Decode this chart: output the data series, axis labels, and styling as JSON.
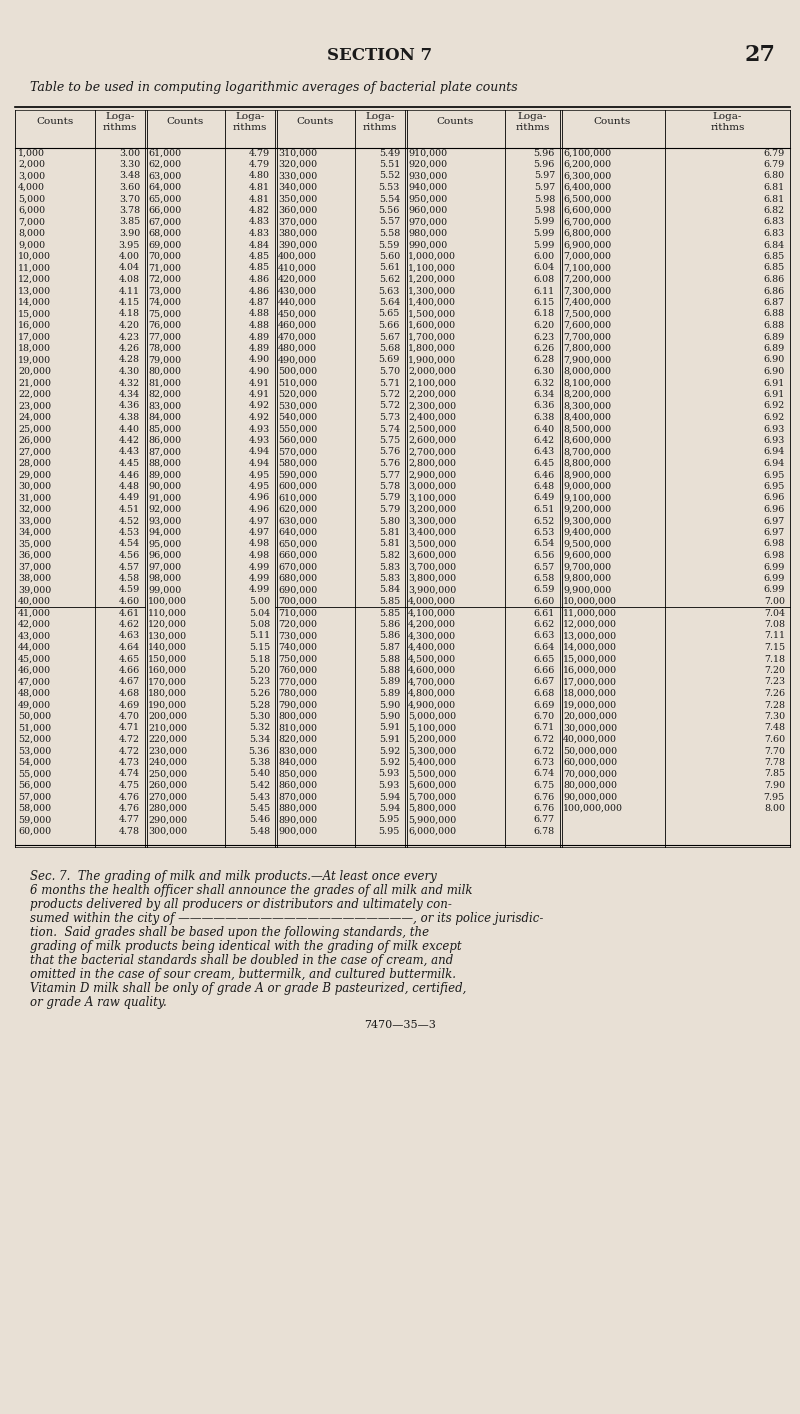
{
  "title_section": "SECTION 7",
  "title_page": "27",
  "table_title": "Table to be used in computing logarithmic averages of bacterial plate counts",
  "col_headers": [
    "Counts",
    "Loga-\nrithms",
    "Counts",
    "Loga-\nrithms",
    "Counts",
    "Loga-\nrithms",
    "Counts",
    "Loga-\nrithms",
    "Counts",
    "Loga-\nrithms"
  ],
  "table_data": [
    [
      "1,000",
      "3.00",
      "61,000",
      "4.79",
      "310,000",
      "5.49",
      "910,000",
      "5.96",
      "6,100,000",
      "6.79"
    ],
    [
      "2,000",
      "3.30",
      "62,000",
      "4.79",
      "320,000",
      "5.51",
      "920,000",
      "5.96",
      "6,200,000",
      "6.79"
    ],
    [
      "3,000",
      "3.48",
      "63,000",
      "4.80",
      "330,000",
      "5.52",
      "930,000",
      "5.97",
      "6,300,000",
      "6.80"
    ],
    [
      "4,000",
      "3.60",
      "64,000",
      "4.81",
      "340,000",
      "5.53",
      "940,000",
      "5.97",
      "6,400,000",
      "6.81"
    ],
    [
      "5,000",
      "3.70",
      "65,000",
      "4.81",
      "350,000",
      "5.54",
      "950,000",
      "5.98",
      "6,500,000",
      "6.81"
    ],
    [
      "6,000",
      "3.78",
      "66,000",
      "4.82",
      "360,000",
      "5.56",
      "960,000",
      "5.98",
      "6,600,000",
      "6.82"
    ],
    [
      "7,000",
      "3.85",
      "67,000",
      "4.83",
      "370,000",
      "5.57",
      "970,000",
      "5.99",
      "6,700,000",
      "6.83"
    ],
    [
      "8,000",
      "3.90",
      "68,000",
      "4.83",
      "380,000",
      "5.58",
      "980,000",
      "5.99",
      "6,800,000",
      "6.83"
    ],
    [
      "9,000",
      "3.95",
      "69,000",
      "4.84",
      "390,000",
      "5.59",
      "990,000",
      "5.99",
      "6,900,000",
      "6.84"
    ],
    [
      "10,000",
      "4.00",
      "70,000",
      "4.85",
      "400,000",
      "5.60",
      "1,000,000",
      "6.00",
      "7,000,000",
      "6.85"
    ],
    [
      "11,000",
      "4.04",
      "71,000",
      "4.85",
      "410,000",
      "5.61",
      "1,100,000",
      "6.04",
      "7,100,000",
      "6.85"
    ],
    [
      "12,000",
      "4.08",
      "72,000",
      "4.86",
      "420,000",
      "5.62",
      "1,200,000",
      "6.08",
      "7,200,000",
      "6.86"
    ],
    [
      "13,000",
      "4.11",
      "73,000",
      "4.86",
      "430,000",
      "5.63",
      "1,300,000",
      "6.11",
      "7,300,000",
      "6.86"
    ],
    [
      "14,000",
      "4.15",
      "74,000",
      "4.87",
      "440,000",
      "5.64",
      "1,400,000",
      "6.15",
      "7,400,000",
      "6.87"
    ],
    [
      "15,000",
      "4.18",
      "75,000",
      "4.88",
      "450,000",
      "5.65",
      "1,500,000",
      "6.18",
      "7,500,000",
      "6.88"
    ],
    [
      "16,000",
      "4.20",
      "76,000",
      "4.88",
      "460,000",
      "5.66",
      "1,600,000",
      "6.20",
      "7,600,000",
      "6.88"
    ],
    [
      "17,000",
      "4.23",
      "77,000",
      "4.89",
      "470,000",
      "5.67",
      "1,700,000",
      "6.23",
      "7,700,000",
      "6.89"
    ],
    [
      "18,000",
      "4.26",
      "78,000",
      "4.89",
      "480,000",
      "5.68",
      "1,800,000",
      "6.26",
      "7,800,000",
      "6.89"
    ],
    [
      "19,000",
      "4.28",
      "79,000",
      "4.90",
      "490,000",
      "5.69",
      "1,900,000",
      "6.28",
      "7,900,000",
      "6.90"
    ],
    [
      "20,000",
      "4.30",
      "80,000",
      "4.90",
      "500,000",
      "5.70",
      "2,000,000",
      "6.30",
      "8,000,000",
      "6.90"
    ],
    [
      "21,000",
      "4.32",
      "81,000",
      "4.91",
      "510,000",
      "5.71",
      "2,100,000",
      "6.32",
      "8,100,000",
      "6.91"
    ],
    [
      "22,000",
      "4.34",
      "82,000",
      "4.91",
      "520,000",
      "5.72",
      "2,200,000",
      "6.34",
      "8,200,000",
      "6.91"
    ],
    [
      "23,000",
      "4.36",
      "83,000",
      "4.92",
      "530,000",
      "5.72",
      "2,300,000",
      "6.36",
      "8,300,000",
      "6.92"
    ],
    [
      "24,000",
      "4.38",
      "84,000",
      "4.92",
      "540,000",
      "5.73",
      "2,400,000",
      "6.38",
      "8,400,000",
      "6.92"
    ],
    [
      "25,000",
      "4.40",
      "85,000",
      "4.93",
      "550,000",
      "5.74",
      "2,500,000",
      "6.40",
      "8,500,000",
      "6.93"
    ],
    [
      "26,000",
      "4.42",
      "86,000",
      "4.93",
      "560,000",
      "5.75",
      "2,600,000",
      "6.42",
      "8,600,000",
      "6.93"
    ],
    [
      "27,000",
      "4.43",
      "87,000",
      "4.94",
      "570,000",
      "5.76",
      "2,700,000",
      "6.43",
      "8,700,000",
      "6.94"
    ],
    [
      "28,000",
      "4.45",
      "88,000",
      "4.94",
      "580,000",
      "5.76",
      "2,800,000",
      "6.45",
      "8,800,000",
      "6.94"
    ],
    [
      "29,000",
      "4.46",
      "89,000",
      "4.95",
      "590,000",
      "5.77",
      "2,900,000",
      "6.46",
      "8,900,000",
      "6.95"
    ],
    [
      "30,000",
      "4.48",
      "90,000",
      "4.95",
      "600,000",
      "5.78",
      "3,000,000",
      "6.48",
      "9,000,000",
      "6.95"
    ],
    [
      "31,000",
      "4.49",
      "91,000",
      "4.96",
      "610,000",
      "5.79",
      "3,100,000",
      "6.49",
      "9,100,000",
      "6.96"
    ],
    [
      "32,000",
      "4.51",
      "92,000",
      "4.96",
      "620,000",
      "5.79",
      "3,200,000",
      "6.51",
      "9,200,000",
      "6.96"
    ],
    [
      "33,000",
      "4.52",
      "93,000",
      "4.97",
      "630,000",
      "5.80",
      "3,300,000",
      "6.52",
      "9,300,000",
      "6.97"
    ],
    [
      "34,000",
      "4.53",
      "94,000",
      "4.97",
      "640,000",
      "5.81",
      "3,400,000",
      "6.53",
      "9,400,000",
      "6.97"
    ],
    [
      "35,000",
      "4.54",
      "95,000",
      "4.98",
      "650,000",
      "5.81",
      "3,500,000",
      "6.54",
      "9,500,000",
      "6.98"
    ],
    [
      "36,000",
      "4.56",
      "96,000",
      "4.98",
      "660,000",
      "5.82",
      "3,600,000",
      "6.56",
      "9,600,000",
      "6.98"
    ],
    [
      "37,000",
      "4.57",
      "97,000",
      "4.99",
      "670,000",
      "5.83",
      "3,700,000",
      "6.57",
      "9,700,000",
      "6.99"
    ],
    [
      "38,000",
      "4.58",
      "98,000",
      "4.99",
      "680,000",
      "5.83",
      "3,800,000",
      "6.58",
      "9,800,000",
      "6.99"
    ],
    [
      "39,000",
      "4.59",
      "99,000",
      "4.99",
      "690,000",
      "5.84",
      "3,900,000",
      "6.59",
      "9,900,000",
      "6.99"
    ],
    [
      "40,000",
      "4.60",
      "100,000",
      "5.00",
      "700,000",
      "5.85",
      "4,000,000",
      "6.60",
      "10,000,000",
      "7.00"
    ],
    [
      "41,000",
      "4.61",
      "110,000",
      "5.04",
      "710,000",
      "5.85",
      "4,100,000",
      "6.61",
      "11,000,000",
      "7.04"
    ],
    [
      "42,000",
      "4.62",
      "120,000",
      "5.08",
      "720,000",
      "5.86",
      "4,200,000",
      "6.62",
      "12,000,000",
      "7.08"
    ],
    [
      "43,000",
      "4.63",
      "130,000",
      "5.11",
      "730,000",
      "5.86",
      "4,300,000",
      "6.63",
      "13,000,000",
      "7.11"
    ],
    [
      "44,000",
      "4.64",
      "140,000",
      "5.15",
      "740,000",
      "5.87",
      "4,400,000",
      "6.64",
      "14,000,000",
      "7.15"
    ],
    [
      "45,000",
      "4.65",
      "150,000",
      "5.18",
      "750,000",
      "5.88",
      "4,500,000",
      "6.65",
      "15,000,000",
      "7.18"
    ],
    [
      "46,000",
      "4.66",
      "160,000",
      "5.20",
      "760,000",
      "5.88",
      "4,600,000",
      "6.66",
      "16,000,000",
      "7.20"
    ],
    [
      "47,000",
      "4.67",
      "170,000",
      "5.23",
      "770,000",
      "5.89",
      "4,700,000",
      "6.67",
      "17,000,000",
      "7.23"
    ],
    [
      "48,000",
      "4.68",
      "180,000",
      "5.26",
      "780,000",
      "5.89",
      "4,800,000",
      "6.68",
      "18,000,000",
      "7.26"
    ],
    [
      "49,000",
      "4.69",
      "190,000",
      "5.28",
      "790,000",
      "5.90",
      "4,900,000",
      "6.69",
      "19,000,000",
      "7.28"
    ],
    [
      "50,000",
      "4.70",
      "200,000",
      "5.30",
      "800,000",
      "5.90",
      "5,000,000",
      "6.70",
      "20,000,000",
      "7.30"
    ],
    [
      "51,000",
      "4.71",
      "210,000",
      "5.32",
      "810,000",
      "5.91",
      "5,100,000",
      "6.71",
      "30,000,000",
      "7.48"
    ],
    [
      "52,000",
      "4.72",
      "220,000",
      "5.34",
      "820,000",
      "5.91",
      "5,200,000",
      "6.72",
      "40,000,000",
      "7.60"
    ],
    [
      "53,000",
      "4.72",
      "230,000",
      "5.36",
      "830,000",
      "5.92",
      "5,300,000",
      "6.72",
      "50,000,000",
      "7.70"
    ],
    [
      "54,000",
      "4.73",
      "240,000",
      "5.38",
      "840,000",
      "5.92",
      "5,400,000",
      "6.73",
      "60,000,000",
      "7.78"
    ],
    [
      "55,000",
      "4.74",
      "250,000",
      "5.40",
      "850,000",
      "5.93",
      "5,500,000",
      "6.74",
      "70,000,000",
      "7.85"
    ],
    [
      "56,000",
      "4.75",
      "260,000",
      "5.42",
      "860,000",
      "5.93",
      "5,600,000",
      "6.75",
      "80,000,000",
      "7.90"
    ],
    [
      "57,000",
      "4.76",
      "270,000",
      "5.43",
      "870,000",
      "5.94",
      "5,700,000",
      "6.76",
      "90,000,000",
      "7.95"
    ],
    [
      "58,000",
      "4.76",
      "280,000",
      "5.45",
      "880,000",
      "5.94",
      "5,800,000",
      "6.76",
      "100,000,000",
      "8.00"
    ],
    [
      "59,000",
      "4.77",
      "290,000",
      "5.46",
      "890,000",
      "5.95",
      "5,900,000",
      "6.77",
      "",
      ""
    ],
    [
      "60,000",
      "4.78",
      "300,000",
      "5.48",
      "900,000",
      "5.95",
      "6,000,000",
      "6.78",
      "",
      ""
    ]
  ],
  "footer_text": "Sec. 7.  The grading of milk and milk products.—At least once every\n6 months the health officer shall announce the grades of all milk and milk\nproducts delivered by all producers or distributors and ultimately con-\nsumed within the city of ————————————————————, or its police jurisdic-\ntion.  Said grades shall be based upon the following standards, the\ngrading of milk products being identical with the grading of milk except\nthat the bacterial standards shall be doubled in the case of cream, and\nomitted in the case of sour cream, buttermilk, and cultured buttermilk.\nVitamin D milk shall be only of grade A or grade B pasteurized, certified,\nor grade A raw quality.",
  "footer_code": "7470—35—3",
  "bg_color": "#e8e0d5"
}
